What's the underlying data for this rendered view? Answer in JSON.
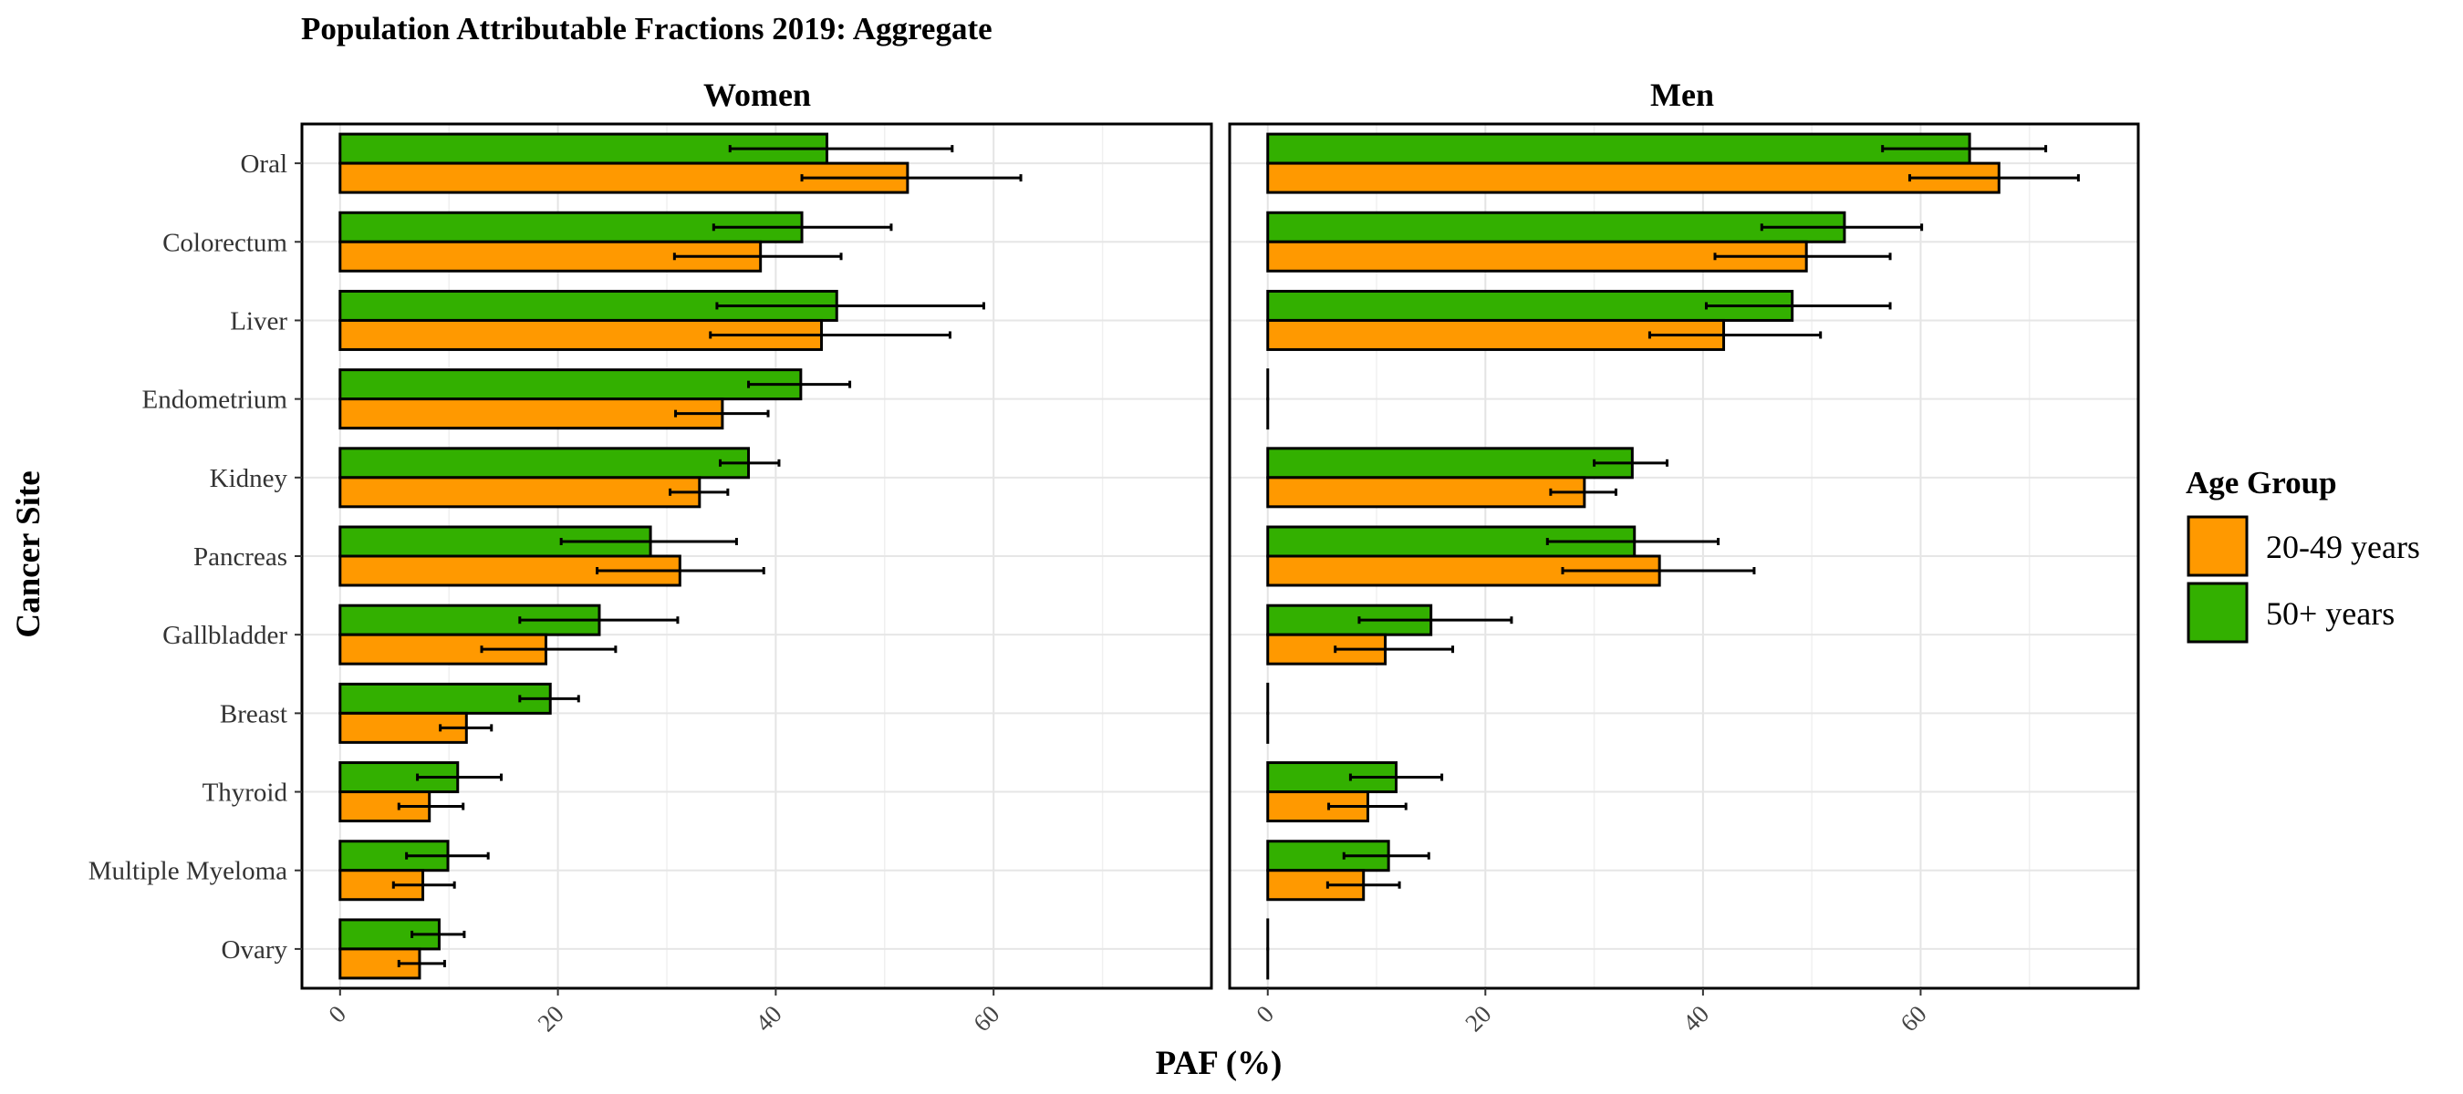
{
  "chart_data": {
    "type": "bar",
    "orientation": "horizontal",
    "title": "Population Attributable Fractions 2019: Aggregate",
    "xlabel": "PAF (%)",
    "ylabel": "Cancer Site",
    "xlim": [
      -3.5,
      80
    ],
    "xticks": [
      0,
      20,
      40,
      60
    ],
    "grid": true,
    "legend": {
      "title": "Age Group",
      "position": "right",
      "entries": [
        {
          "label": "20-49 years",
          "color": "#FF9900"
        },
        {
          "label": "50+ years",
          "color": "#33B000"
        }
      ]
    },
    "categories": [
      "Oral",
      "Colorectum",
      "Liver",
      "Endometrium",
      "Kidney",
      "Pancreas",
      "Gallbladder",
      "Breast",
      "Thyroid",
      "Multiple Myeloma",
      "Ovary"
    ],
    "panels": [
      {
        "name": "Women",
        "series": [
          {
            "name": "50+ years",
            "values": [
              44.7,
              42.4,
              45.6,
              42.3,
              37.5,
              28.5,
              23.8,
              19.3,
              10.8,
              9.9,
              9.1
            ],
            "lower": [
              35.8,
              34.3,
              34.6,
              37.5,
              34.9,
              20.3,
              16.5,
              16.5,
              7.1,
              6.1,
              6.6
            ],
            "upper": [
              56.2,
              50.6,
              59.1,
              46.8,
              40.3,
              36.4,
              31.0,
              21.9,
              14.8,
              13.6,
              11.4
            ]
          },
          {
            "name": "20-49 years",
            "values": [
              52.1,
              38.6,
              44.2,
              35.1,
              33.0,
              31.2,
              18.9,
              11.6,
              8.2,
              7.6,
              7.3
            ],
            "lower": [
              42.4,
              30.7,
              34.0,
              30.8,
              30.3,
              23.6,
              13.0,
              9.2,
              5.4,
              4.9,
              5.4
            ],
            "upper": [
              62.5,
              46.0,
              56.0,
              39.3,
              35.6,
              38.9,
              25.3,
              13.9,
              11.3,
              10.5,
              9.6
            ]
          }
        ]
      },
      {
        "name": "Men",
        "series": [
          {
            "name": "50+ years",
            "values": [
              64.5,
              53.0,
              48.2,
              0,
              33.5,
              33.7,
              15.0,
              0,
              11.8,
              11.1,
              0
            ],
            "lower": [
              56.5,
              45.4,
              40.3,
              null,
              30.0,
              25.7,
              8.4,
              null,
              7.6,
              7.0,
              null
            ],
            "upper": [
              71.5,
              60.1,
              57.2,
              null,
              36.7,
              41.4,
              22.4,
              null,
              16.0,
              14.8,
              null
            ]
          },
          {
            "name": "20-49 years",
            "values": [
              67.2,
              49.5,
              41.9,
              0,
              29.1,
              36.0,
              10.8,
              0,
              9.2,
              8.8,
              0
            ],
            "lower": [
              59.0,
              41.1,
              35.1,
              null,
              26.0,
              27.1,
              6.2,
              null,
              5.6,
              5.5,
              null
            ],
            "upper": [
              74.5,
              57.2,
              50.8,
              null,
              32.0,
              44.7,
              17.0,
              null,
              12.7,
              12.1,
              null
            ]
          }
        ]
      }
    ]
  }
}
